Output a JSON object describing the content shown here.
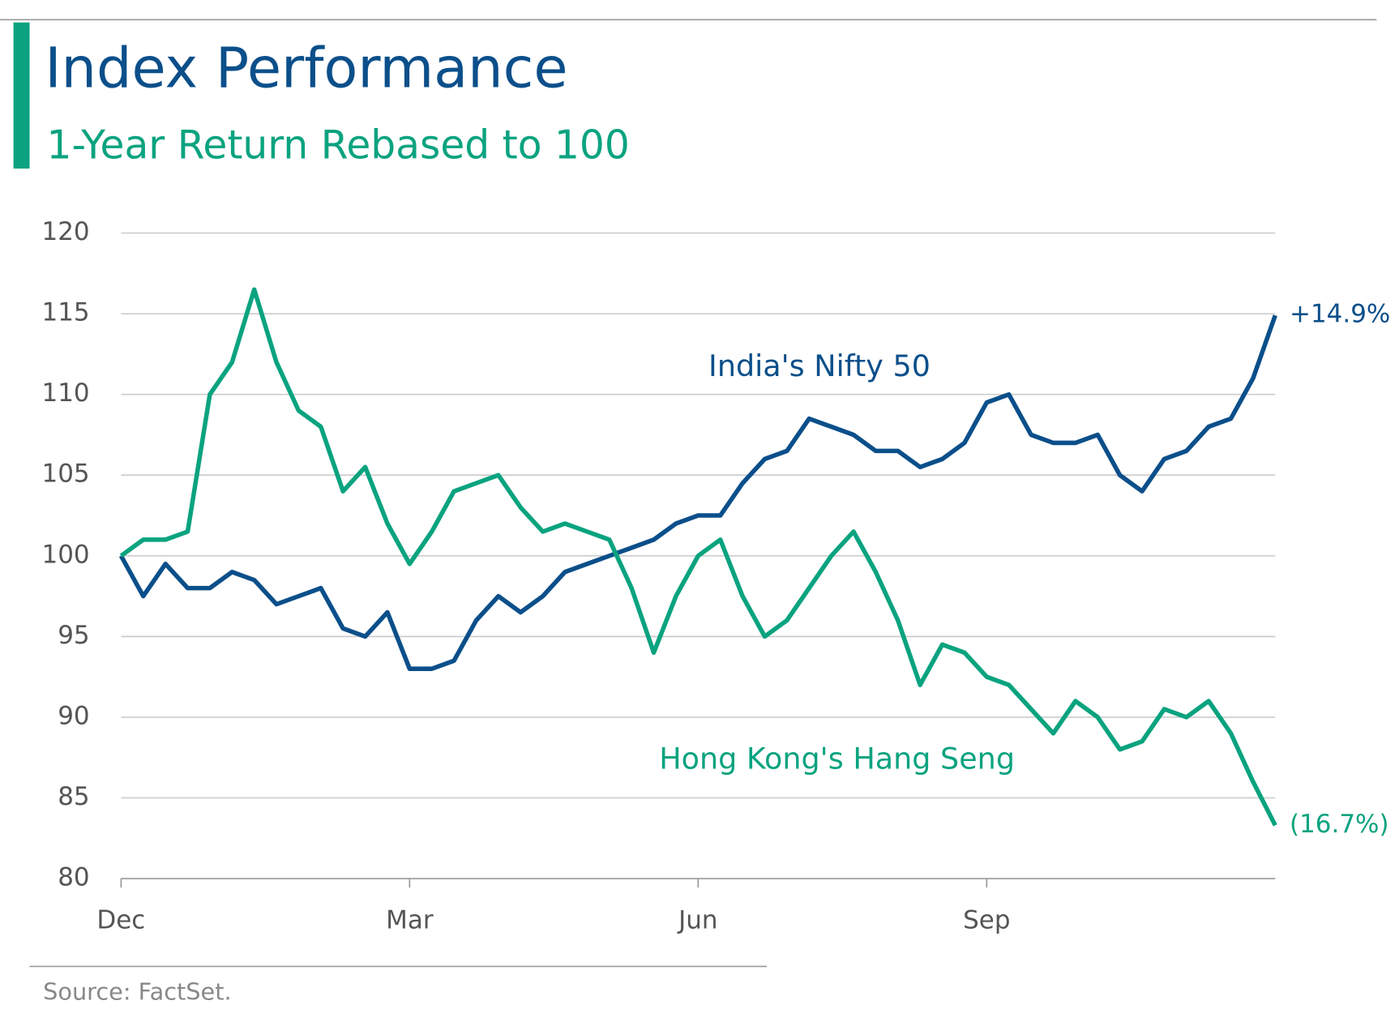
{
  "chart_data": {
    "type": "line",
    "title": "Index Performance",
    "subtitle": "1-Year Return Rebased to 100",
    "source": "Source: FactSet.",
    "categories": [
      "Dec",
      null,
      null,
      null,
      null,
      null,
      null,
      null,
      null,
      null,
      null,
      null,
      null,
      "Mar",
      null,
      null,
      null,
      null,
      null,
      null,
      null,
      null,
      null,
      null,
      null,
      null,
      "Jun",
      null,
      null,
      null,
      null,
      null,
      null,
      null,
      null,
      null,
      null,
      null,
      null,
      "Sep",
      null,
      null,
      null,
      null,
      null,
      null,
      null,
      null,
      null,
      null,
      null,
      null,
      null
    ],
    "series": [
      {
        "name": "India's Nifty 50",
        "color": "#0b4f8a",
        "values": [
          100,
          97.5,
          99.5,
          98,
          98,
          99,
          98.5,
          97,
          97.5,
          98,
          95.5,
          95,
          96.5,
          93,
          93,
          93.5,
          96,
          97.5,
          96.5,
          97.5,
          99,
          99.5,
          100,
          100.5,
          101,
          102,
          102.5,
          102.5,
          104.5,
          106,
          106.5,
          108.5,
          108,
          107.5,
          106.5,
          106.5,
          105.5,
          106,
          107,
          109.5,
          110,
          107.5,
          107,
          107,
          107.5,
          105,
          104,
          106,
          106.5,
          108,
          108.5,
          111,
          114.9
        ]
      },
      {
        "name": "Hong Kong's Hang Seng",
        "color": "#0aa37f",
        "values": [
          100,
          101,
          101,
          101.5,
          110,
          112,
          116.5,
          112,
          109,
          108,
          104,
          105.5,
          102,
          99.5,
          101.5,
          104,
          104.5,
          105,
          103,
          101.5,
          102,
          101.5,
          101,
          98,
          94,
          97.5,
          100,
          101,
          97.5,
          95,
          96,
          98,
          100,
          101.5,
          99,
          96,
          92,
          94.5,
          94,
          92.5,
          92,
          90.5,
          89,
          91,
          90,
          88,
          88.5,
          90.5,
          90,
          91,
          89,
          86,
          83.3
        ]
      }
    ],
    "end_labels": [
      "+14.9%",
      "(16.7%)"
    ],
    "ylim": [
      80,
      120
    ],
    "yticks": [
      80,
      85,
      90,
      95,
      100,
      105,
      110,
      115,
      120
    ],
    "grid": true
  }
}
